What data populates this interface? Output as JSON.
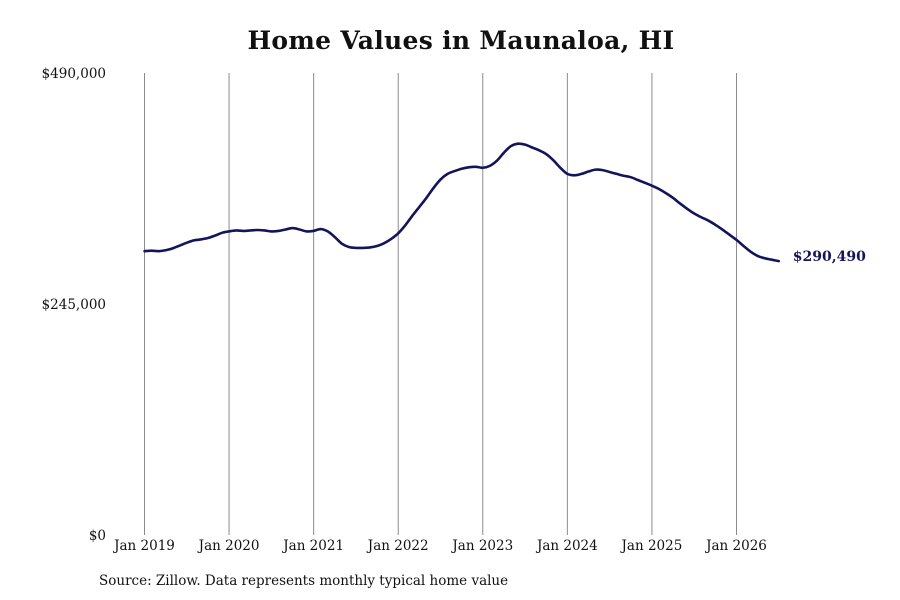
{
  "chart_data": {
    "type": "line",
    "title": "Home Values in Maunaloa, HI",
    "xlabel": "",
    "ylabel": "",
    "x_ticks": [
      "Jan 2019",
      "Jan 2020",
      "Jan 2021",
      "Jan 2022",
      "Jan 2023",
      "Jan 2024",
      "Jan 2025",
      "Jan 2026"
    ],
    "y_ticks": [
      "$490,000",
      "$245,000",
      "$0"
    ],
    "ylim": [
      0,
      490000
    ],
    "grid": "vertical",
    "legend": "none",
    "series": [
      {
        "color": "#14145a",
        "end_label": "$290,490",
        "points": [
          [
            "2019-01",
            301000
          ],
          [
            "2019-02",
            301500
          ],
          [
            "2019-03",
            301000
          ],
          [
            "2019-04",
            302000
          ],
          [
            "2019-05",
            304000
          ],
          [
            "2019-06",
            307000
          ],
          [
            "2019-07",
            310000
          ],
          [
            "2019-08",
            312500
          ],
          [
            "2019-09",
            313500
          ],
          [
            "2019-10",
            315000
          ],
          [
            "2019-11",
            317500
          ],
          [
            "2019-12",
            320500
          ],
          [
            "2020-01",
            322000
          ],
          [
            "2020-02",
            323000
          ],
          [
            "2020-03",
            322500
          ],
          [
            "2020-04",
            323000
          ],
          [
            "2020-05",
            323500
          ],
          [
            "2020-06",
            323000
          ],
          [
            "2020-07",
            322000
          ],
          [
            "2020-08",
            322500
          ],
          [
            "2020-09",
            324000
          ],
          [
            "2020-10",
            325500
          ],
          [
            "2020-11",
            324000
          ],
          [
            "2020-12",
            322000
          ],
          [
            "2021-01",
            322500
          ],
          [
            "2021-02",
            324500
          ],
          [
            "2021-03",
            322000
          ],
          [
            "2021-04",
            316000
          ],
          [
            "2021-05",
            309000
          ],
          [
            "2021-06",
            305500
          ],
          [
            "2021-07",
            304500
          ],
          [
            "2021-08",
            304500
          ],
          [
            "2021-09",
            305000
          ],
          [
            "2021-10",
            306500
          ],
          [
            "2021-11",
            309500
          ],
          [
            "2021-12",
            314000
          ],
          [
            "2022-01",
            320000
          ],
          [
            "2022-02",
            328500
          ],
          [
            "2022-03",
            338500
          ],
          [
            "2022-04",
            348000
          ],
          [
            "2022-05",
            357500
          ],
          [
            "2022-06",
            368000
          ],
          [
            "2022-07",
            377000
          ],
          [
            "2022-08",
            383000
          ],
          [
            "2022-09",
            386000
          ],
          [
            "2022-10",
            388500
          ],
          [
            "2022-11",
            390000
          ],
          [
            "2022-12",
            390500
          ],
          [
            "2023-01",
            389500
          ],
          [
            "2023-02",
            391500
          ],
          [
            "2023-03",
            397000
          ],
          [
            "2023-04",
            405500
          ],
          [
            "2023-05",
            412500
          ],
          [
            "2023-06",
            415000
          ],
          [
            "2023-07",
            414000
          ],
          [
            "2023-08",
            411000
          ],
          [
            "2023-09",
            408000
          ],
          [
            "2023-10",
            404000
          ],
          [
            "2023-11",
            397500
          ],
          [
            "2023-12",
            389500
          ],
          [
            "2024-01",
            383000
          ],
          [
            "2024-02",
            381500
          ],
          [
            "2024-03",
            383000
          ],
          [
            "2024-04",
            385500
          ],
          [
            "2024-05",
            387500
          ],
          [
            "2024-06",
            387000
          ],
          [
            "2024-07",
            385000
          ],
          [
            "2024-08",
            383000
          ],
          [
            "2024-09",
            381000
          ],
          [
            "2024-10",
            379500
          ],
          [
            "2024-11",
            376500
          ],
          [
            "2024-12",
            373500
          ],
          [
            "2025-01",
            370500
          ],
          [
            "2025-02",
            367000
          ],
          [
            "2025-03",
            362500
          ],
          [
            "2025-04",
            357500
          ],
          [
            "2025-05",
            351500
          ],
          [
            "2025-06",
            346000
          ],
          [
            "2025-07",
            341000
          ],
          [
            "2025-08",
            337000
          ],
          [
            "2025-09",
            333500
          ],
          [
            "2025-10",
            329000
          ],
          [
            "2025-11",
            324000
          ],
          [
            "2025-12",
            318500
          ],
          [
            "2026-01",
            313000
          ],
          [
            "2026-02",
            306500
          ],
          [
            "2026-03",
            300500
          ],
          [
            "2026-04",
            296000
          ],
          [
            "2026-05",
            293500
          ],
          [
            "2026-06",
            292000
          ],
          [
            "2026-07",
            290490
          ]
        ]
      }
    ]
  },
  "source_note": "Source: Zillow. Data represents monthly typical home value"
}
